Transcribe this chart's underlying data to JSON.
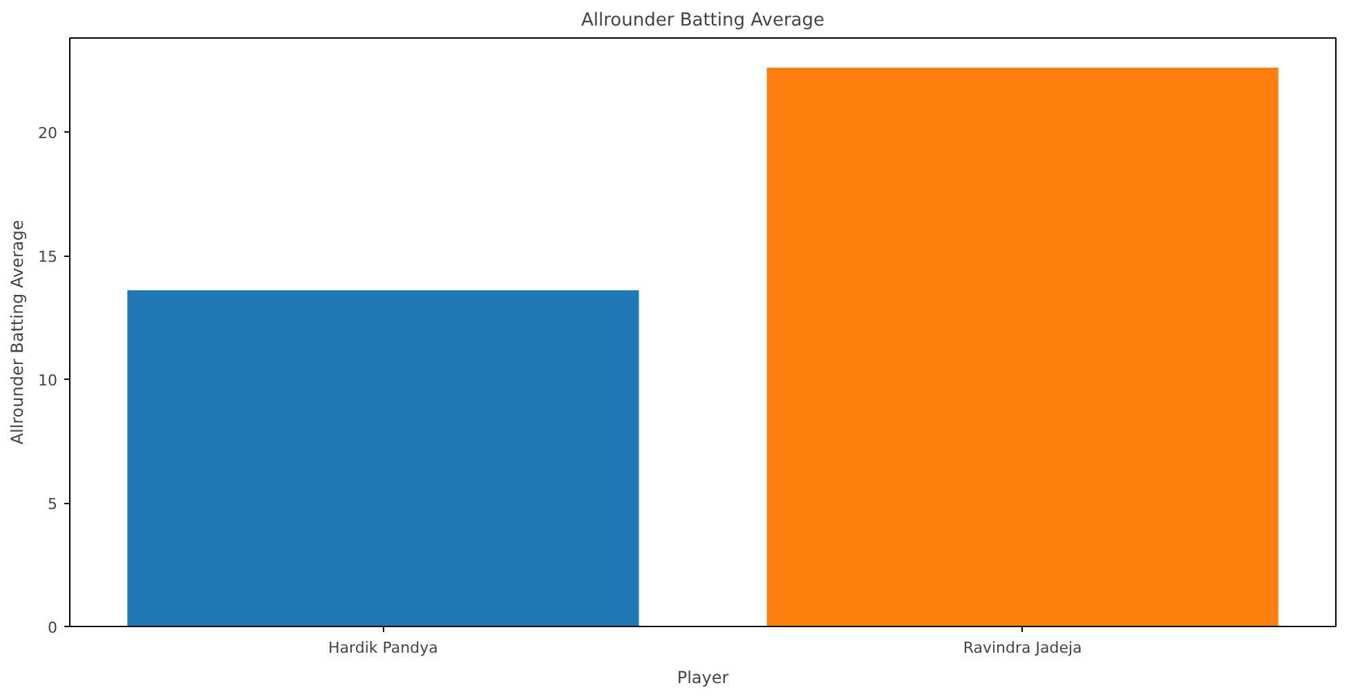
{
  "chart_data": {
    "type": "bar",
    "title": "Allrounder Batting Average",
    "xlabel": "Player",
    "ylabel": "Allrounder Batting Average",
    "categories": [
      "Hardik Pandya",
      "Ravindra Jadeja"
    ],
    "values": [
      13.6,
      22.6
    ],
    "colors": [
      "#1f77b4",
      "#ff7f0e"
    ],
    "ylim": [
      0,
      23.8
    ],
    "yticks": [
      0,
      5,
      10,
      15,
      20
    ],
    "grid": false
  }
}
